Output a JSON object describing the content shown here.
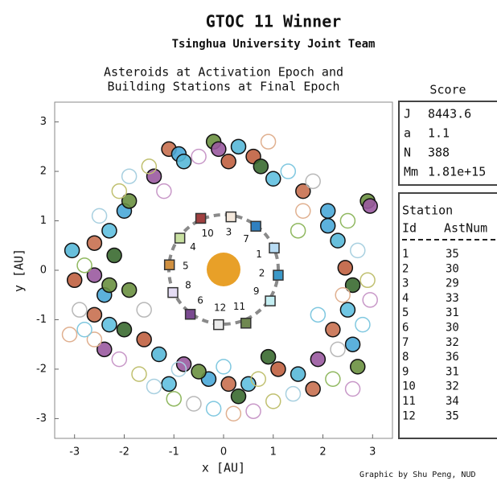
{
  "title": "GTOC 11 Winner",
  "subtitle": "Tsinghua University Joint Team",
  "credit": "Graphic by Shu Peng, NUD",
  "chart_data": {
    "type": "scatter",
    "title": [
      "Asteroids at Activation Epoch and",
      "Building Stations at Final Epoch"
    ],
    "xlabel": "x [AU]",
    "ylabel": "y [AU]",
    "xlim": [
      -3.4,
      3.4
    ],
    "ylim": [
      -3.4,
      3.4
    ],
    "xticks": [
      -3,
      -2,
      -1,
      0,
      1,
      2,
      3
    ],
    "yticks": [
      -3,
      -2,
      -1,
      0,
      1,
      2,
      3
    ],
    "series": [
      {
        "style": "filled",
        "x": [
          -1.1,
          -0.9,
          -0.2,
          -0.1,
          0.3,
          0.6,
          0.75,
          1.0,
          1.6,
          2.1,
          2.9,
          2.95,
          2.3,
          2.45,
          2.6,
          2.5,
          2.2,
          2.6,
          2.7,
          1.9,
          1.5,
          1.1,
          0.9,
          0.5,
          0.1,
          -0.3,
          -0.5,
          -0.8,
          -1.3,
          -1.6,
          -2.0,
          -2.3,
          -2.6,
          -2.4,
          -2.3,
          -2.6,
          -3.05,
          -3.0,
          -2.2,
          -2.3,
          -2.6,
          -2.0,
          -1.9,
          -1.4,
          -0.8,
          0.1,
          0.3,
          -1.1,
          1.8,
          2.1,
          -1.9,
          -2.4
        ],
        "values": [
          2.45,
          2.35,
          2.6,
          2.45,
          2.5,
          2.3,
          2.1,
          1.85,
          1.6,
          1.2,
          1.4,
          1.3,
          0.6,
          0.05,
          -0.3,
          -0.8,
          -1.2,
          -1.5,
          -1.95,
          -1.8,
          -2.1,
          -2.0,
          -1.75,
          -2.3,
          -2.3,
          -2.2,
          -2.05,
          -1.9,
          -1.7,
          -1.4,
          -1.2,
          -1.1,
          -0.9,
          -0.5,
          -0.3,
          -0.1,
          0.4,
          -0.2,
          0.3,
          0.8,
          0.55,
          1.2,
          1.4,
          1.9,
          2.2,
          2.2,
          -2.55,
          -2.3,
          -2.4,
          0.9,
          -0.4,
          -1.6
        ],
        "colors": [
          "#c87050",
          "#4aa8d8",
          "#6a9040",
          "#9a5aa0",
          "#58b8d8",
          "#c06040",
          "#3a6a30",
          "#60c0e0"
        ]
      },
      {
        "style": "hollow",
        "x": [
          -1.9,
          -1.5,
          -0.5,
          0.9,
          1.3,
          1.8,
          2.5,
          2.7,
          2.9,
          2.95,
          2.4,
          2.8,
          2.3,
          2.2,
          1.4,
          1.0,
          0.6,
          0.2,
          -0.2,
          -0.6,
          -1.0,
          -1.4,
          -1.7,
          -2.1,
          -2.6,
          -2.8,
          -2.9,
          -2.8,
          -2.5,
          -2.1,
          -1.2,
          1.6,
          1.9,
          -1.6,
          1.5,
          -0.9,
          0.7,
          2.6,
          -3.1,
          0.0
        ],
        "values": [
          1.9,
          2.1,
          2.3,
          2.6,
          2.0,
          1.8,
          1.0,
          0.4,
          -0.2,
          -0.6,
          -0.5,
          -1.1,
          -1.6,
          -2.2,
          -2.5,
          -2.65,
          -2.85,
          -2.9,
          -2.8,
          -2.7,
          -2.6,
          -2.35,
          -2.1,
          -1.8,
          -1.4,
          -1.2,
          -0.8,
          0.1,
          1.1,
          1.6,
          1.6,
          1.2,
          -0.9,
          -0.8,
          0.8,
          -2.0,
          -2.2,
          -2.4,
          -1.3,
          -1.95
        ],
        "colors": [
          "#a8d0e0",
          "#c0c070",
          "#c898c8",
          "#e0b090",
          "#80c8e0",
          "#b8b8b8",
          "#90b860"
        ]
      },
      {
        "style": "station",
        "x": [
          1.02,
          1.1,
          0.15,
          -0.88,
          -1.09,
          -0.67,
          0.65,
          -1.02,
          0.94,
          -0.46,
          0.45,
          -0.1
        ],
        "values": [
          0.45,
          -0.1,
          1.08,
          0.65,
          0.11,
          -0.89,
          0.89,
          -0.45,
          -0.62,
          1.05,
          -1.07,
          -1.1
        ],
        "colors": [
          "#b8dcf4",
          "#3a98c8",
          "#f4e8dc",
          "#c8e0a0",
          "#d09040",
          "#7a4a90",
          "#3080c0",
          "#e4dcf4",
          "#c4eef2",
          "#a04040",
          "#708850",
          "#ececec"
        ]
      }
    ]
  },
  "score": {
    "title": "Score",
    "rows": [
      [
        "J",
        "8443.6"
      ],
      [
        "a",
        "1.1"
      ],
      [
        "N",
        "388"
      ],
      [
        "Mm",
        "1.81e+15"
      ]
    ]
  },
  "station_table": {
    "title": "Station",
    "header": [
      "Id",
      "AstNum"
    ],
    "rows": [
      [
        "1",
        "35"
      ],
      [
        "2",
        "30"
      ],
      [
        "3",
        "29"
      ],
      [
        "4",
        "33"
      ],
      [
        "5",
        "31"
      ],
      [
        "6",
        "30"
      ],
      [
        "7",
        "32"
      ],
      [
        "8",
        "36"
      ],
      [
        "9",
        "31"
      ],
      [
        "10",
        "32"
      ],
      [
        "11",
        "34"
      ],
      [
        "12",
        "35"
      ]
    ]
  }
}
